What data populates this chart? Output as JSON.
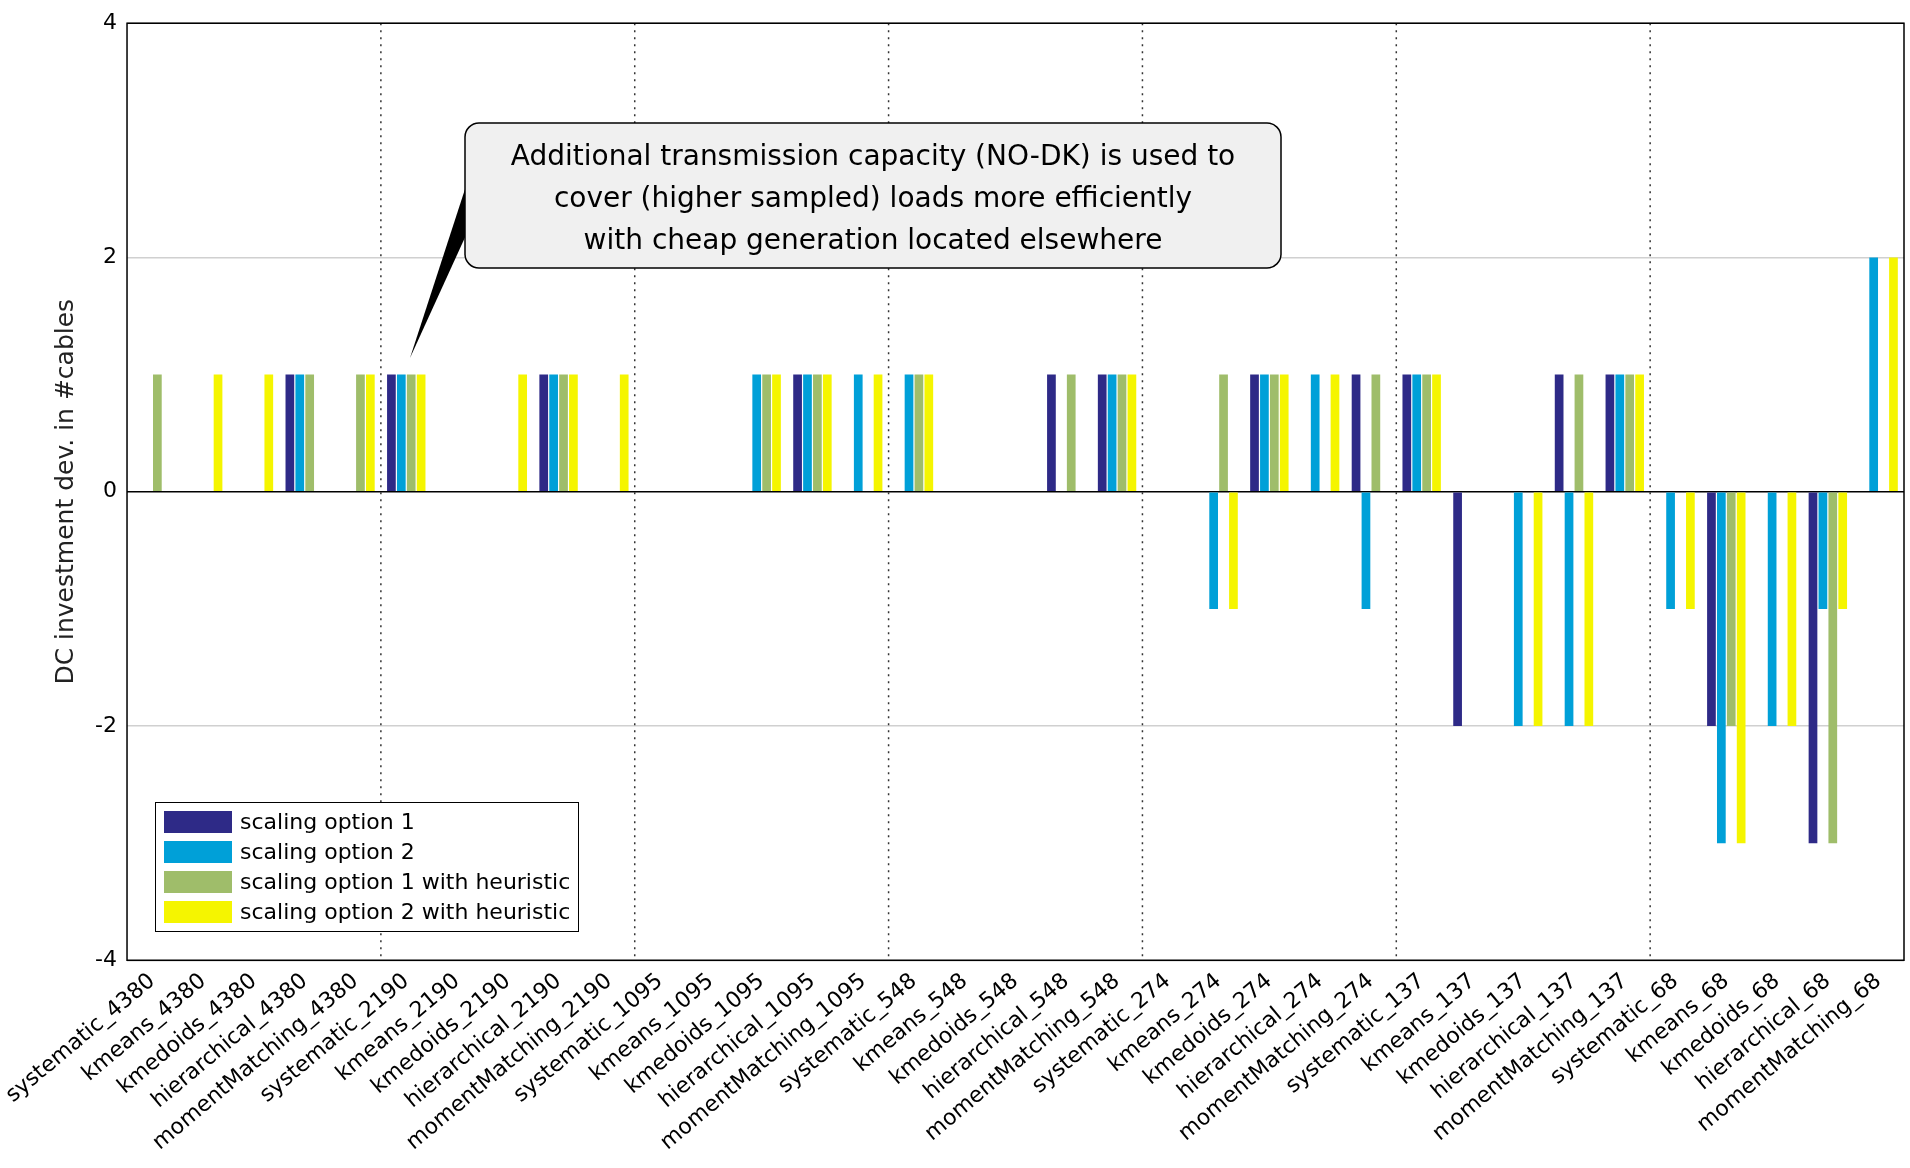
{
  "chart_data": {
    "type": "bar",
    "ylabel": "DC investment dev. in #cables",
    "categories": [
      "systematic_4380",
      "kmeans_4380",
      "kmedoids_4380",
      "hierarchical_4380",
      "momentMatching_4380",
      "systematic_2190",
      "kmeans_2190",
      "kmedoids_2190",
      "hierarchical_2190",
      "momentMatching_2190",
      "systematic_1095",
      "kmeans_1095",
      "kmedoids_1095",
      "hierarchical_1095",
      "momentMatching_1095",
      "systematic_548",
      "kmeans_548",
      "kmedoids_548",
      "hierarchical_548",
      "momentMatching_548",
      "systematic_274",
      "kmeans_274",
      "kmedoids_274",
      "hierarchical_274",
      "momentMatching_274",
      "systematic_137",
      "kmeans_137",
      "kmedoids_137",
      "hierarchical_137",
      "momentMatching_137",
      "systematic_68",
      "kmeans_68",
      "kmedoids_68",
      "hierarchical_68",
      "momentMatching_68"
    ],
    "series": [
      {
        "name": "scaling option 1",
        "color": "#2e2a87",
        "values": [
          0,
          0,
          0,
          1,
          0,
          1,
          0,
          0,
          1,
          0,
          0,
          0,
          0,
          1,
          0,
          0,
          0,
          0,
          1,
          1,
          0,
          0,
          1,
          0,
          1,
          1,
          -2,
          0,
          1,
          1,
          0,
          -2,
          0,
          -3,
          0
        ]
      },
      {
        "name": "scaling option 2",
        "color": "#00a0d8",
        "values": [
          0,
          0,
          0,
          1,
          0,
          1,
          0,
          0,
          1,
          0,
          0,
          0,
          1,
          1,
          1,
          1,
          0,
          0,
          0,
          1,
          0,
          -1,
          1,
          1,
          -1,
          1,
          0,
          -2,
          -2,
          1,
          -1,
          -3,
          -2,
          -1,
          2
        ]
      },
      {
        "name": "scaling option 1 with heuristic",
        "color": "#9fbd6a",
        "values": [
          1,
          0,
          0,
          1,
          1,
          1,
          0,
          0,
          1,
          0,
          0,
          0,
          1,
          1,
          0,
          1,
          0,
          0,
          1,
          1,
          0,
          1,
          1,
          0,
          1,
          1,
          0,
          0,
          1,
          1,
          0,
          -2,
          0,
          -3,
          0
        ]
      },
      {
        "name": "scaling option 2 with heuristic",
        "color": "#f5f500",
        "values": [
          0,
          1,
          1,
          0,
          1,
          1,
          0,
          1,
          1,
          1,
          0,
          0,
          1,
          1,
          1,
          1,
          0,
          0,
          0,
          1,
          0,
          -1,
          1,
          1,
          0,
          1,
          0,
          -2,
          -2,
          1,
          -1,
          -3,
          -2,
          -1,
          2
        ]
      }
    ],
    "ylim": [
      -4,
      4
    ],
    "yticks": [
      -4,
      -2,
      0,
      2,
      4
    ],
    "grid": "y",
    "legend": "bottom left",
    "annotations": [
      "Additional transmission capacity (NO-DK) is used to\ncover (higher sampled) loads more efficiently\nwith cheap generation located elsewhere"
    ]
  }
}
